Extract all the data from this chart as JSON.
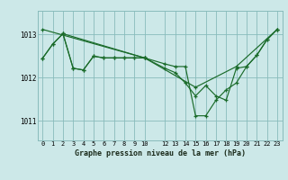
{
  "title": "Graphe pression niveau de la mer (hPa)",
  "bg_color": "#cce8e8",
  "grid_color": "#88bbbb",
  "line_color": "#1a6b2a",
  "marker_color": "#1a6b2a",
  "yticks": [
    1011,
    1012,
    1013
  ],
  "ylim": [
    1010.55,
    1013.55
  ],
  "xlim": [
    -0.5,
    23.5
  ],
  "xticks": [
    0,
    1,
    2,
    3,
    4,
    5,
    6,
    7,
    8,
    9,
    10,
    12,
    13,
    14,
    15,
    16,
    17,
    18,
    19,
    20,
    21,
    22,
    23
  ],
  "series": [
    {
      "x": [
        0,
        1,
        2,
        3,
        4,
        5,
        6,
        7,
        8,
        9,
        10
      ],
      "y": [
        1012.45,
        1012.78,
        1013.02,
        1012.22,
        1012.18,
        1012.5,
        1012.46,
        1012.46,
        1012.46,
        1012.46,
        1012.46
      ]
    },
    {
      "x": [
        0,
        1,
        2,
        3,
        4,
        5,
        6,
        7,
        8,
        9,
        10,
        12,
        13,
        14,
        15,
        16,
        17,
        18,
        19,
        20,
        21,
        22,
        23
      ],
      "y": [
        1012.45,
        1012.78,
        1013.02,
        1012.22,
        1012.18,
        1012.5,
        1012.46,
        1012.46,
        1012.46,
        1012.46,
        1012.46,
        1012.32,
        1012.26,
        1012.26,
        1011.12,
        1011.12,
        1011.48,
        1011.72,
        1011.88,
        1012.26,
        1012.52,
        1012.88,
        1013.12
      ]
    },
    {
      "x": [
        2,
        10,
        12,
        13,
        14,
        15,
        16,
        17,
        18,
        19,
        20,
        21,
        22,
        23
      ],
      "y": [
        1013.02,
        1012.46,
        1012.22,
        1012.12,
        1011.88,
        1011.58,
        1011.82,
        1011.58,
        1011.48,
        1012.22,
        1012.26,
        1012.52,
        1012.88,
        1013.12
      ]
    },
    {
      "x": [
        0,
        10,
        15,
        19,
        23
      ],
      "y": [
        1013.12,
        1012.46,
        1011.78,
        1012.26,
        1013.12
      ]
    }
  ]
}
